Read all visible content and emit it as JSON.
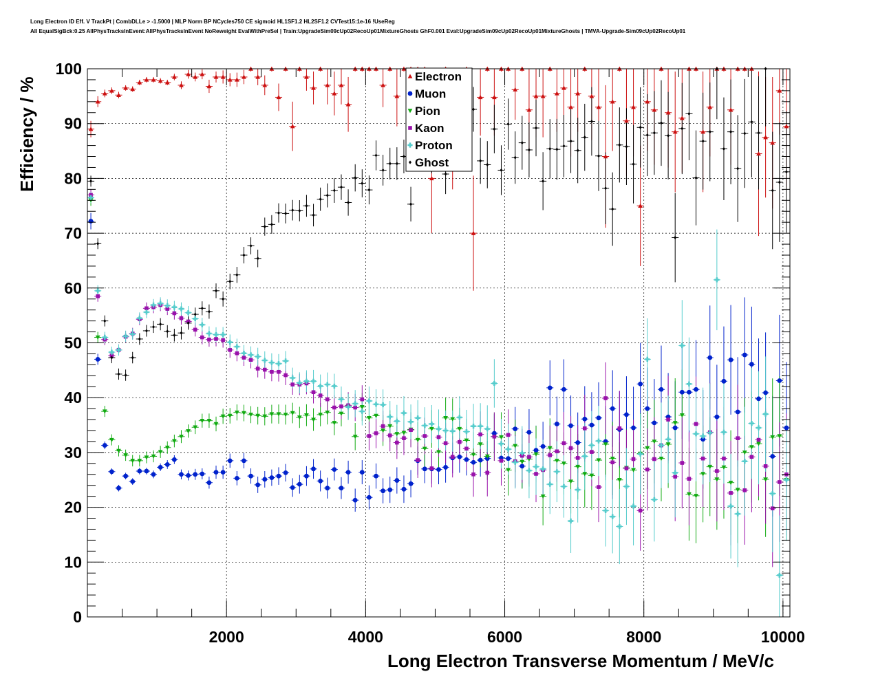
{
  "header": {
    "line1": "Long Electron ID Eff. V TrackPt | CombDLLe > -1.5000 | MLP Norm BP NCycles750 CE sigmoid HL1SF1.2 HL2SF1.2 CVTest15:1e-16 !UseReg",
    "line2": "All EqualSigBck:0.25 AllPhysTracksInEvent:AllPhysTracksInEvent NoReweight EvalWithPreSel | Train:UpgradeSim09cUp02RecoUp01MixtureGhosts GhF0.001 Eval:UpgradeSim09cUp02RecoUp01MixtureGhosts | TMVA-Upgrade-Sim09cUp02RecoUp01"
  },
  "chart_data": {
    "type": "scatter",
    "title": "",
    "xlabel": "Long Electron Transverse Momentum / MeV/c",
    "ylabel": "Efficiency / %",
    "xlim": [
      0,
      10100
    ],
    "ylim": [
      0,
      100
    ],
    "x_ticks": [
      2000,
      4000,
      6000,
      8000,
      10000
    ],
    "y_ticks": [
      0,
      10,
      20,
      30,
      40,
      50,
      60,
      70,
      80,
      90,
      100
    ],
    "grid": true,
    "legend_position": "top-center",
    "x": [
      50,
      150,
      250,
      350,
      450,
      550,
      650,
      750,
      850,
      950,
      1050,
      1150,
      1250,
      1350,
      1450,
      1550,
      1650,
      1750,
      1850,
      1950,
      2050,
      2150,
      2250,
      2350,
      2450,
      2550,
      2650,
      2750,
      2850,
      2950,
      3050,
      3150,
      3250,
      3350,
      3450,
      3550,
      3650,
      3750,
      3850,
      3950,
      4050,
      4150,
      4250,
      4350,
      4450,
      4550,
      4650,
      4750,
      4850,
      4950,
      5050,
      5150,
      5250,
      5350,
      5450,
      5550,
      5650,
      5750,
      5850,
      5950,
      6050,
      6150,
      6250,
      6350,
      6450,
      6550,
      6650,
      6750,
      6850,
      6950,
      7050,
      7150,
      7250,
      7350,
      7450,
      7550,
      7650,
      7750,
      7850,
      7950,
      8050,
      8150,
      8250,
      8350,
      8450,
      8550,
      8650,
      8750,
      8850,
      8950,
      9050,
      9150,
      9250,
      9350,
      9450,
      9550,
      9650,
      9750,
      9850,
      9950,
      10050
    ],
    "series": [
      {
        "name": "Electron",
        "color": "#cc1111",
        "marker": "triangle-up",
        "y": [
          89,
          94,
          95.5,
          96,
          95.2,
          96.5,
          96.3,
          97.5,
          98,
          98,
          97.8,
          97.5,
          98.5,
          97,
          99,
          98.5,
          99,
          96.8,
          98.5,
          98.5,
          98,
          98,
          98.5,
          100,
          98.5,
          97,
          100,
          94.8,
          100,
          89.5,
          100,
          98.5,
          96.5,
          100,
          97,
          95.5,
          97,
          93.5,
          100,
          100,
          100,
          100,
          97,
          100,
          95,
          100,
          100,
          100,
          100,
          80,
          93.5,
          100,
          88,
          94,
          100,
          70,
          94.8,
          100,
          94.8,
          100,
          100,
          96.2,
          100,
          92.5,
          95,
          95,
          100,
          95.5,
          96.5,
          93,
          95.5,
          100,
          95,
          93,
          84,
          94,
          100,
          90.5,
          93,
          75,
          94,
          92.5,
          100,
          92,
          88.5,
          91,
          100,
          100,
          88.5,
          93,
          100,
          100,
          92.5,
          100,
          100,
          100,
          84.5,
          87.5,
          86.5,
          96,
          89.5
        ],
        "err": [
          1.5,
          1,
          0.7,
          0.6,
          0.6,
          0.5,
          0.5,
          0.5,
          0.5,
          0.5,
          0.5,
          0.5,
          0.6,
          0.7,
          0.8,
          0.8,
          0.9,
          1.2,
          1,
          1.2,
          1.2,
          1.3,
          1.3,
          0.5,
          1.5,
          1.8,
          0.5,
          2.5,
          0.5,
          4.5,
          0.5,
          2.5,
          3,
          0.5,
          3.5,
          4,
          3.5,
          5,
          0.5,
          0.5,
          0.5,
          0.5,
          4,
          0.5,
          5.5,
          0.5,
          0.5,
          0.5,
          0.5,
          10,
          7,
          0.5,
          10,
          7,
          0.5,
          10.5,
          7,
          0.5,
          7,
          0.5,
          0.5,
          5.5,
          0.5,
          8,
          7.5,
          7.5,
          0.5,
          7,
          6,
          9,
          7,
          0.5,
          8,
          9,
          13,
          9,
          0.5,
          10,
          9,
          11,
          9,
          10,
          0.5,
          10,
          11,
          10,
          0.5,
          0.5,
          11,
          9,
          0.5,
          0.5,
          10,
          0.5,
          0.5,
          0.5,
          15,
          11,
          12,
          8,
          11
        ]
      },
      {
        "name": "Muon",
        "color": "#0022cc",
        "marker": "circle",
        "y": [
          72.2,
          47,
          31.3,
          26.5,
          23.5,
          25.7,
          24.7,
          26.6,
          26.6,
          26,
          27.3,
          27.8,
          28.7,
          26,
          25.8,
          26,
          26.1,
          24.5,
          26.4,
          26.4,
          28.5,
          25.3,
          28.5,
          25.7,
          24.1,
          25.1,
          25.4,
          25.7,
          26.3,
          23.6,
          24.2,
          25.7,
          27,
          24.8,
          23.5,
          26.9,
          23.5,
          26.4,
          21.3,
          26.4,
          21.8,
          25.7,
          23,
          23.2,
          24.9,
          23.3,
          24.3,
          28.5,
          27,
          27,
          26.9,
          27.3,
          29,
          29.2,
          28.7,
          28.2,
          28.6,
          28.9,
          33.5,
          29,
          28.9,
          34.3,
          27.5,
          33.7,
          30.4,
          31.1,
          41.8,
          35.2,
          41.5,
          34.9,
          31.8,
          36.1,
          35,
          36.3,
          32,
          38,
          34.2,
          36.9,
          34.5,
          42.5,
          38,
          35.4,
          41.5,
          36.5,
          34.5,
          41,
          41,
          41.5,
          32.4,
          47.3,
          36.5,
          43,
          46.9,
          37.4,
          47.8,
          46.1,
          39.8,
          40.9,
          29.3,
          43.1,
          34.5
        ],
        "err": [
          1.5,
          1,
          0.7,
          0.6,
          0.6,
          0.6,
          0.6,
          0.6,
          0.6,
          0.7,
          0.7,
          0.8,
          0.8,
          0.9,
          0.9,
          1,
          1,
          1.1,
          1.2,
          1.2,
          1.3,
          1.3,
          1.4,
          1.4,
          1.5,
          1.5,
          1.5,
          1.6,
          1.6,
          1.7,
          1.7,
          1.8,
          1.8,
          1.9,
          1.9,
          2,
          2,
          2.1,
          2.1,
          2.2,
          2.2,
          2.3,
          2.3,
          2.4,
          2.4,
          2.5,
          2.5,
          2.6,
          2.6,
          2.7,
          2.7,
          2.8,
          2.8,
          2.9,
          2.9,
          3,
          3,
          3.2,
          3.5,
          3.5,
          3.7,
          4,
          4,
          4.2,
          4.5,
          4.5,
          5,
          5,
          5.5,
          5.5,
          5.5,
          6,
          6,
          6.5,
          6.5,
          7,
          7,
          7,
          7.5,
          7.5,
          7.5,
          8,
          8,
          8,
          8.5,
          8.5,
          9,
          9,
          9,
          9.5,
          9.5,
          10,
          10,
          10,
          10.5,
          10.5,
          11,
          11,
          11,
          12,
          12
        ]
      },
      {
        "name": "Pion",
        "color": "#11aa11",
        "marker": "triangle-down",
        "y": [
          76,
          51,
          37.5,
          32.3,
          30.3,
          29.5,
          28.5,
          28.5,
          29.1,
          29.3,
          30.1,
          30.9,
          32.1,
          32.9,
          33.9,
          34.6,
          35.8,
          35.8,
          35.2,
          36.6,
          36.7,
          37.3,
          37.2,
          36.9,
          36.7,
          36.6,
          37,
          37,
          36.9,
          37.2,
          36.4,
          36.8,
          36,
          36.9,
          37.3,
          35.4,
          37.1,
          38.4,
          32.9,
          38.3,
          36.3,
          36.7,
          34,
          34.8,
          33.4,
          33.6,
          34.2,
          32.3,
          30.7,
          34.3,
          30.1,
          36.3,
          36.1,
          34.3,
          32.2,
          29.6,
          31.5,
          29.3,
          32.9,
          32.8,
          26.8,
          31.2,
          28.3,
          28.8,
          29.7,
          22,
          30.8,
          28.5,
          28,
          24.7,
          27.4,
          26.1,
          25.8,
          28.6,
          31.5,
          28.9,
          25,
          27.2,
          26.8,
          29.8,
          30.8,
          32,
          28.9,
          31.5,
          35.4,
          36.8,
          22.4,
          22.1,
          26.1,
          27.4,
          25.1,
          27.3,
          24.5,
          23.2,
          30,
          31,
          31.6,
          25.1,
          32.8,
          33,
          25
        ]
      },
      {
        "name": "Kaon",
        "color": "#9911aa",
        "marker": "square",
        "y": [
          77,
          58.5,
          50.6,
          47.7,
          48.7,
          51.1,
          51.7,
          54.3,
          56.3,
          56.5,
          56.9,
          56.2,
          55.4,
          54.5,
          53.9,
          52.4,
          51,
          50.6,
          50.7,
          50.5,
          48.7,
          48.1,
          47.3,
          46.9,
          45.3,
          45.1,
          44.7,
          44.7,
          44.1,
          42.4,
          42.4,
          42.6,
          41,
          40.4,
          39.7,
          38.2,
          38.4,
          38.6,
          38.2,
          39.7,
          33,
          33.5,
          34.8,
          33.1,
          31.8,
          32.6,
          34.1,
          28.6,
          33,
          27.1,
          32.8,
          31.7,
          29.2,
          31.9,
          30.7,
          26,
          33.3,
          26.3,
          32.9,
          28.5,
          33.2,
          28.4,
          29.4,
          29.2,
          26.1,
          26.8,
          29.5,
          30.2,
          31.7,
          30.8,
          29,
          34.4,
          30.1,
          23.7,
          39.9,
          28.2,
          34.4,
          27.1,
          28.8,
          19.4,
          26.9,
          28.8,
          31.3,
          36,
          25.6,
          28.1,
          25.2,
          35.2,
          28.9,
          33.7,
          26.6,
          28.9,
          22.6,
          32.6,
          23.1,
          29.2,
          32.3,
          27.5,
          19.8,
          24.6,
          26
        ]
      },
      {
        "name": "Proton",
        "color": "#55cccc",
        "marker": "cross",
        "y": [
          76.5,
          59.5,
          51,
          48.3,
          48.7,
          51.2,
          51.6,
          54.5,
          55.6,
          56.9,
          57.2,
          56.8,
          56.5,
          56.2,
          55.5,
          54.4,
          53.3,
          51.7,
          51.5,
          51.5,
          50.1,
          49.3,
          48.1,
          47.8,
          47.5,
          46.8,
          46.4,
          46.2,
          46.7,
          43.6,
          42.7,
          43,
          43,
          42.1,
          42.4,
          42.1,
          39.7,
          38.3,
          38.9,
          37.5,
          39.4,
          38.8,
          38.7,
          36.5,
          35.7,
          37.2,
          35.6,
          36.3,
          34.9,
          35.2,
          34.3,
          34,
          33.9,
          36.4,
          33.8,
          34.8,
          34.8,
          34.3,
          42.6,
          31.6,
          30.6,
          28.2,
          29.9,
          26.7,
          27.4,
          27,
          24.2,
          26.5,
          23.8,
          17.5,
          23.2,
          29.3,
          31.3,
          32.1,
          19.4,
          18.3,
          16.5,
          23.8,
          20.2,
          29.7,
          47,
          21.4,
          31.3,
          32.4,
          26.3,
          49.5,
          42.5,
          33.4,
          33,
          33.6,
          61.5,
          33.7,
          20.2,
          18.8,
          28.4,
          35.3,
          34.5,
          37,
          22.5,
          7.6,
          25
        ]
      },
      {
        "name": "Ghost",
        "color": "#000000",
        "marker": "diamond",
        "y": [
          79.5,
          68.1,
          54,
          47.3,
          44.3,
          44.1,
          47.3,
          50.7,
          52.2,
          52.9,
          53.4,
          52.1,
          51.4,
          51.8,
          53.6,
          55.2,
          56.3,
          55.7,
          59.5,
          58,
          61.2,
          62.4,
          66,
          67.7,
          65.4,
          71.2,
          71.6,
          73.7,
          73.6,
          74.2,
          74.1,
          75,
          73.3,
          76.2,
          76.9,
          77.8,
          78.4,
          75.6,
          80.1,
          79.1,
          77.9,
          84.2,
          81.5,
          82.7,
          82.7,
          84,
          75.3,
          85.3,
          88.5,
          84.4,
          87.2,
          80.8,
          88.2,
          91.4,
          88.5,
          92.6,
          83.2,
          82.5,
          89,
          81.5,
          89.9,
          83.8,
          86.5,
          85.2,
          89.2,
          79.5,
          85.4,
          85.3,
          85.9,
          86.8,
          85.1,
          87.5,
          90.4,
          84.1,
          78.2,
          74.4,
          86.1,
          85.8,
          82.6,
          89.3,
          87.9,
          88.3,
          90.1,
          87.8,
          69.2,
          89.1,
          91.8,
          80.1,
          86.8,
          88.5,
          100,
          85.4,
          88.5,
          81.8,
          88.2,
          90.3,
          88.3,
          100,
          77.8,
          79.3,
          81.2
        ]
      }
    ]
  }
}
